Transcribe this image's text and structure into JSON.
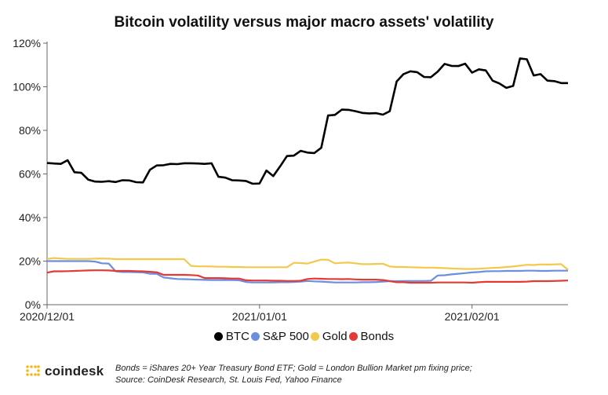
{
  "chart_data": {
    "type": "line",
    "title": "Bitcoin volatility versus major macro assets' volatility",
    "xlabel": "",
    "ylabel": "",
    "ylim": [
      0,
      120
    ],
    "yticks": [
      "0%",
      "20%",
      "40%",
      "60%",
      "80%",
      "100%",
      "120%"
    ],
    "ytick_values": [
      0,
      20,
      40,
      60,
      80,
      100,
      120
    ],
    "xticks": [
      {
        "label": "2020/12/01",
        "date": "2020-12-01"
      },
      {
        "label": "2021/01/01",
        "date": "2021-01-01"
      },
      {
        "label": "2021/02/01",
        "date": "2021-02-01"
      }
    ],
    "xlim": [
      "2020-12-01",
      "2021-02-15"
    ],
    "grid": false,
    "legend_position": "bottom",
    "x": [
      "2020-12-01",
      "2020-12-02",
      "2020-12-03",
      "2020-12-04",
      "2020-12-05",
      "2020-12-06",
      "2020-12-07",
      "2020-12-08",
      "2020-12-09",
      "2020-12-10",
      "2020-12-11",
      "2020-12-12",
      "2020-12-13",
      "2020-12-14",
      "2020-12-15",
      "2020-12-16",
      "2020-12-17",
      "2020-12-18",
      "2020-12-19",
      "2020-12-20",
      "2020-12-21",
      "2020-12-22",
      "2020-12-23",
      "2020-12-24",
      "2020-12-25",
      "2020-12-26",
      "2020-12-27",
      "2020-12-28",
      "2020-12-29",
      "2020-12-30",
      "2020-12-31",
      "2021-01-01",
      "2021-01-02",
      "2021-01-03",
      "2021-01-04",
      "2021-01-05",
      "2021-01-06",
      "2021-01-07",
      "2021-01-08",
      "2021-01-09",
      "2021-01-10",
      "2021-01-11",
      "2021-01-12",
      "2021-01-13",
      "2021-01-14",
      "2021-01-15",
      "2021-01-16",
      "2021-01-17",
      "2021-01-18",
      "2021-01-19",
      "2021-01-20",
      "2021-01-21",
      "2021-01-22",
      "2021-01-23",
      "2021-01-24",
      "2021-01-25",
      "2021-01-26",
      "2021-01-27",
      "2021-01-28",
      "2021-01-29",
      "2021-01-30",
      "2021-01-31",
      "2021-02-01",
      "2021-02-02",
      "2021-02-03",
      "2021-02-04",
      "2021-02-05",
      "2021-02-06",
      "2021-02-07",
      "2021-02-08",
      "2021-02-09",
      "2021-02-10",
      "2021-02-11",
      "2021-02-12",
      "2021-02-13",
      "2021-02-14",
      "2021-02-15"
    ],
    "series": [
      {
        "name": "BTC",
        "color": "#000000",
        "values": [
          65,
          64.8,
          64.6,
          66.3,
          60.8,
          60.5,
          57.4,
          56.5,
          56.4,
          56.7,
          56.3,
          57.1,
          57,
          56.2,
          56.1,
          61.9,
          63.9,
          64,
          64.6,
          64.5,
          64.9,
          64.9,
          64.8,
          64.6,
          64.9,
          58.7,
          58.3,
          57.1,
          57,
          56.8,
          55.5,
          55.6,
          61.6,
          59,
          63.5,
          68.2,
          68.4,
          70.6,
          69.8,
          69.6,
          72,
          86.8,
          87.1,
          89.5,
          89.4,
          88.8,
          88,
          87.8,
          87.9,
          87.2,
          88.8,
          102.4,
          105.8,
          107.1,
          106.7,
          104.5,
          104.4,
          107,
          110.5,
          109.6,
          109.5,
          110.6,
          106.5,
          108,
          107.5,
          102.8,
          101.5,
          99.5,
          100.4,
          113,
          112.6,
          105.2,
          105.8,
          102.8,
          102.6,
          101.7,
          101.7
        ]
      },
      {
        "name": "S&P 500",
        "color": "#6b8fde",
        "values": [
          20,
          20,
          20,
          20,
          20,
          20,
          20,
          19.8,
          19,
          18.9,
          15.3,
          15,
          15,
          14.9,
          14.8,
          14.2,
          14.2,
          12.5,
          12.1,
          11.8,
          11.7,
          11.6,
          11.5,
          11.4,
          11.3,
          11.3,
          11.3,
          11.3,
          11.2,
          10.4,
          10.2,
          10.2,
          10.2,
          10.2,
          10.3,
          10.3,
          10.4,
          10.6,
          10.9,
          10.7,
          10.6,
          10.4,
          10.2,
          10.2,
          10.2,
          10.2,
          10.3,
          10.3,
          10.4,
          10.6,
          10.8,
          10.8,
          10.9,
          10.9,
          10.9,
          10.9,
          11,
          13.4,
          13.5,
          13.9,
          14.2,
          14.5,
          14.8,
          15,
          15.3,
          15.4,
          15.4,
          15.5,
          15.5,
          15.5,
          15.6,
          15.6,
          15.5,
          15.5,
          15.6,
          15.6,
          15.6
        ]
      },
      {
        "name": "Gold",
        "color": "#f2c94c",
        "values": [
          21,
          21.4,
          21.2,
          21,
          21,
          21,
          21,
          21.1,
          21.2,
          21.1,
          20.9,
          20.9,
          20.9,
          20.9,
          20.9,
          20.9,
          20.9,
          20.9,
          20.9,
          20.9,
          20.9,
          17.8,
          17.6,
          17.6,
          17.5,
          17.4,
          17.4,
          17.3,
          17.3,
          17.2,
          17.2,
          17.2,
          17.2,
          17.2,
          17.2,
          17.2,
          19.2,
          19.1,
          18.9,
          19.8,
          20.7,
          20.6,
          19,
          19.2,
          19.3,
          19,
          18.6,
          18.6,
          18.7,
          18.8,
          17.5,
          17.3,
          17.3,
          17.2,
          17.1,
          17,
          17,
          16.9,
          16.8,
          16.6,
          16.5,
          16.4,
          16.4,
          16.5,
          16.7,
          16.9,
          17,
          17.3,
          17.5,
          17.9,
          18.3,
          18.2,
          18.5,
          18.4,
          18.5,
          18.6,
          16
        ]
      },
      {
        "name": "Bonds",
        "color": "#e53935",
        "values": [
          14.7,
          15.3,
          15.3,
          15.4,
          15.5,
          15.6,
          15.7,
          15.8,
          15.8,
          15.7,
          15.5,
          15.5,
          15.5,
          15.4,
          15.3,
          15.1,
          14.9,
          13.7,
          13.7,
          13.7,
          13.7,
          13.6,
          13.4,
          12.2,
          12.2,
          12.2,
          12.1,
          12,
          12,
          11.2,
          11.1,
          11.1,
          11.1,
          11,
          11,
          10.9,
          10.9,
          11,
          11.8,
          12,
          11.9,
          11.8,
          11.8,
          11.7,
          11.8,
          11.6,
          11.5,
          11.5,
          11.5,
          11.3,
          10.8,
          10.3,
          10.3,
          10.1,
          10.1,
          10.1,
          10.1,
          10.2,
          10.2,
          10.2,
          10.2,
          10.2,
          10.1,
          10.3,
          10.5,
          10.5,
          10.5,
          10.5,
          10.5,
          10.5,
          10.6,
          10.8,
          10.8,
          10.8,
          10.9,
          11,
          11.1
        ]
      }
    ]
  },
  "legend": [
    {
      "label": "BTC",
      "color": "#000000"
    },
    {
      "label": "S&P 500",
      "color": "#6b8fde"
    },
    {
      "label": "Gold",
      "color": "#f2c94c"
    },
    {
      "label": "Bonds",
      "color": "#e53935"
    }
  ],
  "footer": {
    "logo_text": "coindesk",
    "logo_color": "#f2b91f",
    "note_line1": "Bonds = iShares 20+ Year Treasury Bond ETF;   Gold = London Bullion Market pm fixing price;",
    "note_line2": "Source: CoinDesk Research, St. Louis Fed, Yahoo Finance"
  }
}
